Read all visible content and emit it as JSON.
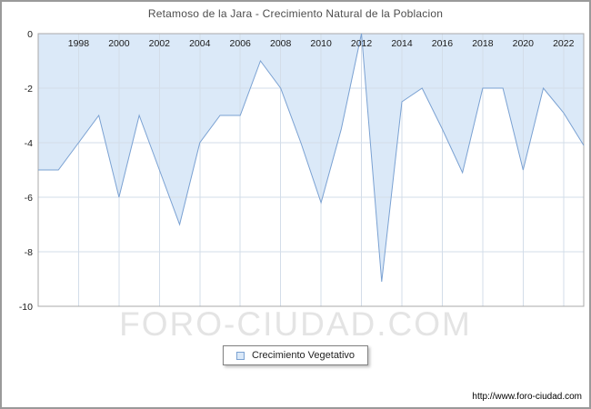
{
  "title": "Retamoso de la Jara - Crecimiento Natural de la Poblacion",
  "watermark": "FORO-CIUDAD.COM",
  "legend": {
    "label": "Crecimiento Vegetativo"
  },
  "footer": {
    "url": "http://www.foro-ciudad.com"
  },
  "chart_data": {
    "type": "area",
    "title": "Retamoso de la Jara - Crecimiento Natural de la Poblacion",
    "series_name": "Crecimiento Vegetativo",
    "x": [
      1996,
      1997,
      1998,
      1999,
      2000,
      2001,
      2002,
      2003,
      2004,
      2005,
      2006,
      2007,
      2008,
      2009,
      2010,
      2011,
      2012,
      2013,
      2014,
      2015,
      2016,
      2017,
      2018,
      2019,
      2020,
      2021,
      2022,
      2023
    ],
    "values": [
      -5.0,
      -5.0,
      -4.0,
      -3.0,
      -6.0,
      -3.0,
      -5.0,
      -7.0,
      -4.0,
      -3.0,
      -3.0,
      -1.0,
      -2.0,
      -4.0,
      -6.2,
      -3.5,
      0.0,
      -9.1,
      -2.5,
      -2.0,
      -3.5,
      -5.1,
      -2.0,
      -2.0,
      -5.0,
      -2.0,
      -2.9,
      -4.1
    ],
    "xlabel": "",
    "ylabel": "",
    "ylim": [
      -10,
      0
    ],
    "y_ticks": [
      0,
      -2,
      -4,
      -6,
      -8,
      -10
    ],
    "x_tick_labels": [
      1998,
      2000,
      2002,
      2004,
      2006,
      2008,
      2010,
      2012,
      2014,
      2016,
      2018,
      2020,
      2022
    ],
    "grid": true,
    "legend_position": "bottom",
    "colors": {
      "fill": "#dbe9f8",
      "line": "#7aa1d2",
      "grid": "#d3dde9",
      "axis": "#a8a8a8",
      "tick_text": "#1a1a1a"
    }
  }
}
